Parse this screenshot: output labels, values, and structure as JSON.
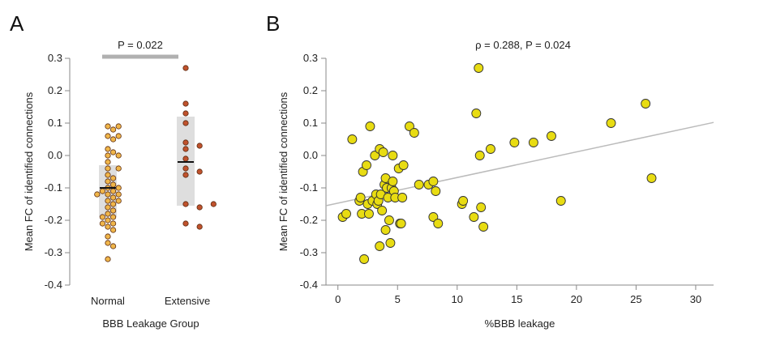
{
  "chart_data": [
    {
      "panel": "A",
      "type": "scatter",
      "subtype": "strip-plot",
      "title": "",
      "xlabel": "BBB Leakage Group",
      "ylabel": "Mean FC of identified connections",
      "categories": [
        "Normal",
        "Extensive"
      ],
      "ylim": [
        -0.4,
        0.3
      ],
      "yticks": [
        0.3,
        0.2,
        0.1,
        0.0,
        -0.1,
        -0.2,
        -0.3,
        -0.4
      ],
      "ytick_labels": [
        "0.3",
        "0.2",
        "0.1",
        "0.0",
        "-0.1",
        "-0.2",
        "-0.3",
        "-0.4"
      ],
      "annotation": "P = 0.022",
      "grid": false,
      "series": [
        {
          "category": "Normal",
          "color": "#f0b64a",
          "mean": -0.1,
          "box": [
            -0.19,
            -0.03
          ],
          "values": [
            0.09,
            0.09,
            0.08,
            0.06,
            0.06,
            0.05,
            0.02,
            0.01,
            0.0,
            0.0,
            -0.02,
            -0.04,
            -0.04,
            -0.06,
            -0.07,
            -0.08,
            -0.09,
            -0.1,
            -0.1,
            -0.11,
            -0.11,
            -0.12,
            -0.12,
            -0.12,
            -0.13,
            -0.14,
            -0.14,
            -0.15,
            -0.16,
            -0.17,
            -0.18,
            -0.19,
            -0.19,
            -0.2,
            -0.21,
            -0.21,
            -0.22,
            -0.23,
            -0.25,
            -0.27,
            -0.28,
            -0.32
          ]
        },
        {
          "category": "Extensive",
          "color": "#c0522d",
          "mean": -0.02,
          "box": [
            -0.155,
            0.12
          ],
          "values": [
            0.27,
            0.16,
            0.13,
            0.1,
            0.04,
            0.03,
            0.02,
            -0.01,
            -0.04,
            -0.05,
            -0.06,
            -0.15,
            -0.15,
            -0.16,
            -0.21,
            -0.22
          ]
        }
      ]
    },
    {
      "panel": "B",
      "type": "scatter",
      "title": "",
      "xlabel": "%BBB leakage",
      "ylabel": "Mean FC of identified connections",
      "xlim": [
        -1,
        31.5
      ],
      "ylim": [
        -0.4,
        0.3
      ],
      "xticks": [
        0,
        5,
        10,
        15,
        20,
        25,
        30
      ],
      "xtick_labels": [
        "0",
        "5",
        "10",
        "15",
        "20",
        "25",
        "30"
      ],
      "yticks": [
        0.3,
        0.2,
        0.1,
        0.0,
        -0.1,
        -0.2,
        -0.3,
        -0.4
      ],
      "ytick_labels": [
        "0.3",
        "0.2",
        "0.1",
        "0.0",
        "-0.1",
        "-0.2",
        "-0.3",
        "-0.4"
      ],
      "annotation": "ρ = 0.288, P = 0.024",
      "point_color": "#e8dc12",
      "regression_line": {
        "x": [
          -1,
          31.5
        ],
        "y": [
          -0.155,
          0.102
        ],
        "color": "#bbbbbb"
      },
      "grid": false,
      "points": [
        {
          "x": 0.4,
          "y": -0.19
        },
        {
          "x": 0.7,
          "y": -0.18
        },
        {
          "x": 1.2,
          "y": 0.05
        },
        {
          "x": 1.8,
          "y": -0.14
        },
        {
          "x": 1.9,
          "y": -0.13
        },
        {
          "x": 2.0,
          "y": -0.18
        },
        {
          "x": 2.1,
          "y": -0.05
        },
        {
          "x": 2.2,
          "y": -0.32
        },
        {
          "x": 2.4,
          "y": -0.03
        },
        {
          "x": 2.5,
          "y": -0.15
        },
        {
          "x": 2.6,
          "y": -0.18
        },
        {
          "x": 2.7,
          "y": 0.09
        },
        {
          "x": 2.9,
          "y": -0.14
        },
        {
          "x": 3.1,
          "y": 0.0
        },
        {
          "x": 3.2,
          "y": -0.12
        },
        {
          "x": 3.3,
          "y": -0.15
        },
        {
          "x": 3.4,
          "y": -0.14
        },
        {
          "x": 3.5,
          "y": 0.02
        },
        {
          "x": 3.5,
          "y": -0.28
        },
        {
          "x": 3.6,
          "y": -0.12
        },
        {
          "x": 3.7,
          "y": -0.17
        },
        {
          "x": 3.8,
          "y": 0.01
        },
        {
          "x": 3.9,
          "y": -0.09
        },
        {
          "x": 4.0,
          "y": -0.07
        },
        {
          "x": 4.0,
          "y": -0.23
        },
        {
          "x": 4.1,
          "y": -0.1
        },
        {
          "x": 4.2,
          "y": -0.13
        },
        {
          "x": 4.3,
          "y": -0.2
        },
        {
          "x": 4.4,
          "y": -0.27
        },
        {
          "x": 4.5,
          "y": -0.1
        },
        {
          "x": 4.6,
          "y": 0.0
        },
        {
          "x": 4.6,
          "y": -0.08
        },
        {
          "x": 4.7,
          "y": -0.11
        },
        {
          "x": 4.8,
          "y": -0.13
        },
        {
          "x": 5.1,
          "y": -0.04
        },
        {
          "x": 5.2,
          "y": -0.21
        },
        {
          "x": 5.3,
          "y": -0.21
        },
        {
          "x": 5.4,
          "y": -0.13
        },
        {
          "x": 5.5,
          "y": -0.03
        },
        {
          "x": 6.0,
          "y": 0.09
        },
        {
          "x": 6.4,
          "y": 0.07
        },
        {
          "x": 6.8,
          "y": -0.09
        },
        {
          "x": 7.6,
          "y": -0.09
        },
        {
          "x": 8.0,
          "y": -0.08
        },
        {
          "x": 8.0,
          "y": -0.19
        },
        {
          "x": 8.2,
          "y": -0.11
        },
        {
          "x": 8.4,
          "y": -0.21
        },
        {
          "x": 10.4,
          "y": -0.15
        },
        {
          "x": 10.5,
          "y": -0.14
        },
        {
          "x": 11.4,
          "y": -0.19
        },
        {
          "x": 11.6,
          "y": 0.13
        },
        {
          "x": 11.8,
          "y": 0.27
        },
        {
          "x": 11.9,
          "y": 0.0
        },
        {
          "x": 12.0,
          "y": -0.16
        },
        {
          "x": 12.2,
          "y": -0.22
        },
        {
          "x": 12.8,
          "y": 0.02
        },
        {
          "x": 14.8,
          "y": 0.04
        },
        {
          "x": 16.4,
          "y": 0.04
        },
        {
          "x": 17.9,
          "y": 0.06
        },
        {
          "x": 18.7,
          "y": -0.14
        },
        {
          "x": 22.9,
          "y": 0.1
        },
        {
          "x": 25.8,
          "y": 0.16
        },
        {
          "x": 26.3,
          "y": -0.07
        }
      ]
    }
  ],
  "labels": {
    "panel_a": "A",
    "panel_b": "B"
  }
}
